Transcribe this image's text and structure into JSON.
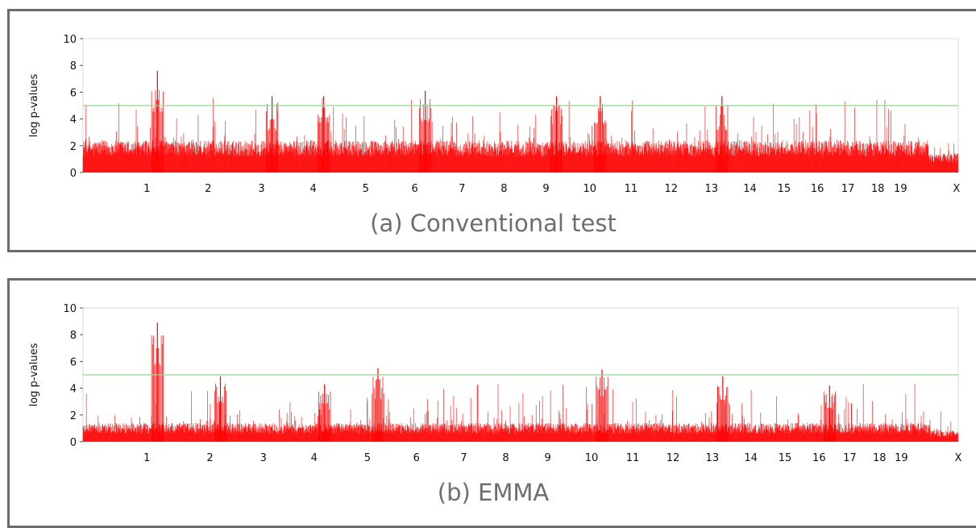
{
  "chart_data": [
    {
      "type": "manhattan",
      "title": "",
      "caption": "(a) Conventional test",
      "xlabel": "",
      "ylabel": "log p-values",
      "ylim": [
        0,
        10
      ],
      "yticks": [
        0,
        2,
        4,
        6,
        8,
        10
      ],
      "threshold": 5,
      "chromosomes": [
        "1",
        "2",
        "3",
        "4",
        "5",
        "6",
        "7",
        "8",
        "9",
        "10",
        "11",
        "12",
        "13",
        "14",
        "15",
        "16",
        "17",
        "18",
        "19",
        "X"
      ],
      "chromosome_tick_positions": [
        0.073,
        0.143,
        0.204,
        0.263,
        0.323,
        0.379,
        0.433,
        0.481,
        0.529,
        0.579,
        0.626,
        0.672,
        0.718,
        0.762,
        0.801,
        0.839,
        0.874,
        0.908,
        0.934,
        0.998
      ],
      "peaks": [
        {
          "chromosome": "1",
          "value": 7.6
        },
        {
          "chromosome": "3",
          "value": 5.7
        },
        {
          "chromosome": "4",
          "value": 5.7
        },
        {
          "chromosome": "6",
          "value": 6.1
        },
        {
          "chromosome": "9",
          "value": 5.7
        },
        {
          "chromosome": "10",
          "value": 5.7
        },
        {
          "chromosome": "13",
          "value": 5.7
        }
      ],
      "series": [
        {
          "color": "#ff0000"
        }
      ],
      "threshold_color": "#90d890",
      "grid": false
    },
    {
      "type": "manhattan",
      "title": "",
      "caption": "(b) EMMA",
      "xlabel": "",
      "ylabel": "log p-values",
      "ylim": [
        0,
        10
      ],
      "yticks": [
        0,
        2,
        4,
        6,
        8,
        10
      ],
      "threshold": 5,
      "chromosomes": [
        "1",
        "2",
        "3",
        "4",
        "5",
        "6",
        "7",
        "8",
        "9",
        "10",
        "11",
        "12",
        "13",
        "14",
        "15",
        "16",
        "17",
        "18",
        "19",
        "X"
      ],
      "chromosome_tick_positions": [
        0.073,
        0.145,
        0.206,
        0.264,
        0.325,
        0.381,
        0.435,
        0.483,
        0.531,
        0.581,
        0.628,
        0.674,
        0.719,
        0.763,
        0.802,
        0.841,
        0.876,
        0.91,
        0.935,
        1.0
      ],
      "peaks": [
        {
          "chromosome": "1",
          "value": 8.9
        },
        {
          "chromosome": "2",
          "value": 4.9
        },
        {
          "chromosome": "4",
          "value": 4.3
        },
        {
          "chromosome": "5",
          "value": 5.5
        },
        {
          "chromosome": "10",
          "value": 5.4
        },
        {
          "chromosome": "13",
          "value": 4.9
        },
        {
          "chromosome": "16",
          "value": 4.2
        }
      ],
      "series": [
        {
          "color": "#ff0000"
        }
      ],
      "threshold_color": "#90d890",
      "grid": false
    }
  ]
}
